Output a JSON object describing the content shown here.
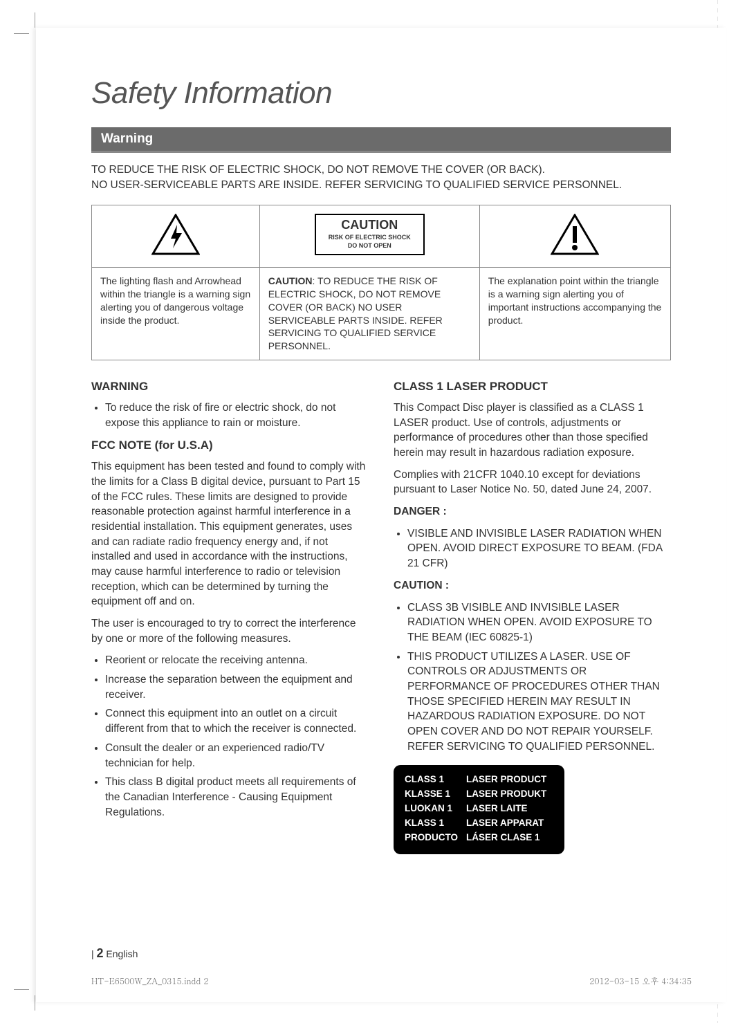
{
  "page": {
    "title": "Safety Information",
    "section_bar": "Warning",
    "intro_line1": "TO REDUCE THE RISK OF ELECTRIC SHOCK, DO NOT REMOVE THE COVER (OR BACK).",
    "intro_line2": "NO USER-SERVICEABLE PARTS ARE INSIDE. REFER SERVICING TO QUALIFIED SERVICE PERSONNEL."
  },
  "caution_table": {
    "cols_widths": [
      "29%",
      "38%",
      "33%"
    ],
    "center_box": {
      "title": "CAUTION",
      "sub1": "RISK OF ELECTRIC SHOCK",
      "sub2": "DO NOT OPEN"
    },
    "left_icon_name": "lightning-triangle-icon",
    "right_icon_name": "exclamation-triangle-icon",
    "row2": {
      "left": "The lighting flash and Arrowhead within the triangle is a warning sign alerting you of dangerous voltage inside the product.",
      "center_prefix": "CAUTION",
      "center_rest": ": TO REDUCE THE RISK OF ELECTRIC SHOCK, DO NOT REMOVE COVER (OR BACK) NO USER SERVICEABLE PARTS INSIDE. REFER SERVICING TO QUALIFIED SERVICE PERSONNEL.",
      "right": "The explanation point within the triangle is a warning sign alerting you of important instructions accompanying the product."
    }
  },
  "left_col": {
    "h_warning": "WARNING",
    "warning_bullet": "To reduce the risk of fire or electric shock, do not expose this appliance to rain or moisture.",
    "h_fcc": "FCC NOTE (for U.S.A)",
    "fcc_p1": "This equipment has been tested and found to comply with the limits for a Class B digital device, pursuant to Part 15 of the FCC rules. These limits are designed to provide reasonable protection against harmful interference in a residential installation. This equipment generates, uses and can radiate radio frequency energy and, if not installed and used in accordance with the instructions, may cause harmful interference to radio or television reception, which can be determined by turning the equipment off and on.",
    "fcc_p2": "The user is encouraged to try to correct the interference by one or more of the following measures.",
    "fcc_bullets": [
      "Reorient or relocate the receiving antenna.",
      "Increase the separation between the equipment and receiver.",
      "Connect this equipment into an outlet on a circuit different from that to which the receiver is connected.",
      "Consult the dealer or an experienced radio/TV technician for help.",
      "This class B digital product meets all requirements of the Canadian Interference - Causing Equipment Regulations."
    ]
  },
  "right_col": {
    "h_laser": "CLASS 1 LASER PRODUCT",
    "laser_p1": "This Compact Disc player is classified as a CLASS 1 LASER product. Use of controls, adjustments or performance of procedures other than those specified herein may result in hazardous radiation exposure.",
    "laser_p2": "Complies with 21CFR 1040.10 except for deviations pursuant to Laser Notice No. 50, dated June 24, 2007.",
    "danger_label": "DANGER :",
    "danger_bullet": "VISIBLE AND INVISIBLE LASER RADIATION WHEN OPEN. AVOID DIRECT EXPOSURE TO BEAM. (FDA 21 CFR)",
    "caution_label": "CAUTION :",
    "caution_bullets": [
      "CLASS 3B VISIBLE AND INVISIBLE LASER RADIATION WHEN OPEN. AVOID EXPOSURE TO THE BEAM (IEC 60825-1)",
      "THIS PRODUCT UTILIZES A LASER. USE OF CONTROLS OR ADJUSTMENTS OR PERFORMANCE OF PROCEDURES OTHER THAN THOSE SPECIFIED HEREIN MAY RESULT IN HAZARDOUS RADIATION EXPOSURE. DO NOT OPEN COVER AND DO NOT REPAIR YOURSELF. REFER SERVICING TO QUALIFIED PERSONNEL."
    ],
    "laser_table": [
      [
        "CLASS 1",
        "LASER PRODUCT"
      ],
      [
        "KLASSE 1",
        "LASER PRODUKT"
      ],
      [
        "LUOKAN 1",
        "LASER LAITE"
      ],
      [
        "KLASS 1",
        "LASER APPARAT"
      ],
      [
        "PRODUCTO",
        "LÁSER CLASE 1"
      ]
    ]
  },
  "footer": {
    "page_prefix": "| ",
    "page_num": "2",
    "page_lang": " English"
  },
  "print": {
    "left": "HT-E6500W_ZA_0315.indd   2",
    "right": "2012-03-15   오후 4:34:35"
  },
  "colors": {
    "section_bar_bg": "#6b6b6b",
    "section_bar_border": "#888888",
    "title_color": "#555555",
    "text_color": "#333333",
    "table_border": "#888888",
    "laser_box_bg": "#000000",
    "laser_box_fg": "#ffffff"
  }
}
